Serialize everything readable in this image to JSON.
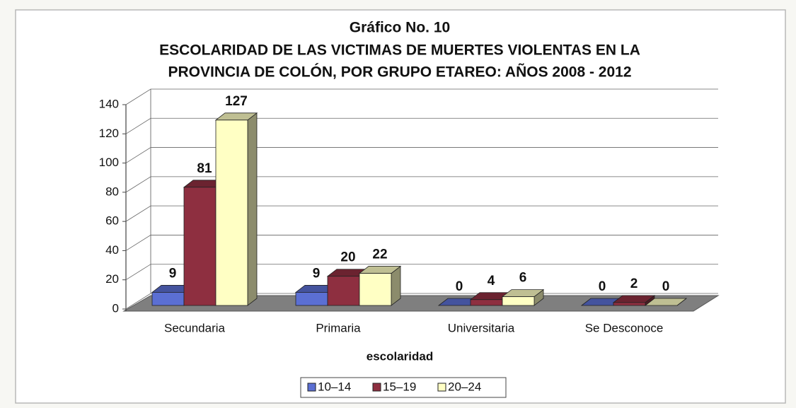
{
  "chart_data": {
    "type": "bar3d",
    "title": "Gráfico No. 10",
    "subtitle": [
      "ESCOLARIDAD DE LAS VICTIMAS DE MUERTES VIOLENTAS EN LA",
      "PROVINCIA DE COLÓN, POR GRUPO ETAREO: AÑOS 2008 - 2012"
    ],
    "x_label": "escolaridad",
    "categories": [
      "Secundaria",
      "Primaria",
      "Universitaria",
      "Se Desconoce"
    ],
    "series": [
      {
        "name": "10–14",
        "color": "#5b6fd3",
        "values": [
          9,
          9,
          0,
          0
        ]
      },
      {
        "name": "15–19",
        "color": "#8e2f40",
        "values": [
          81,
          20,
          4,
          2
        ]
      },
      {
        "name": "20–24",
        "color": "#ffffc4",
        "values": [
          127,
          22,
          6,
          0
        ]
      }
    ],
    "ylim": [
      0,
      140
    ],
    "yticks": [
      0,
      20,
      40,
      60,
      80,
      100,
      120,
      140
    ],
    "grid": true,
    "legend": "bottom"
  }
}
